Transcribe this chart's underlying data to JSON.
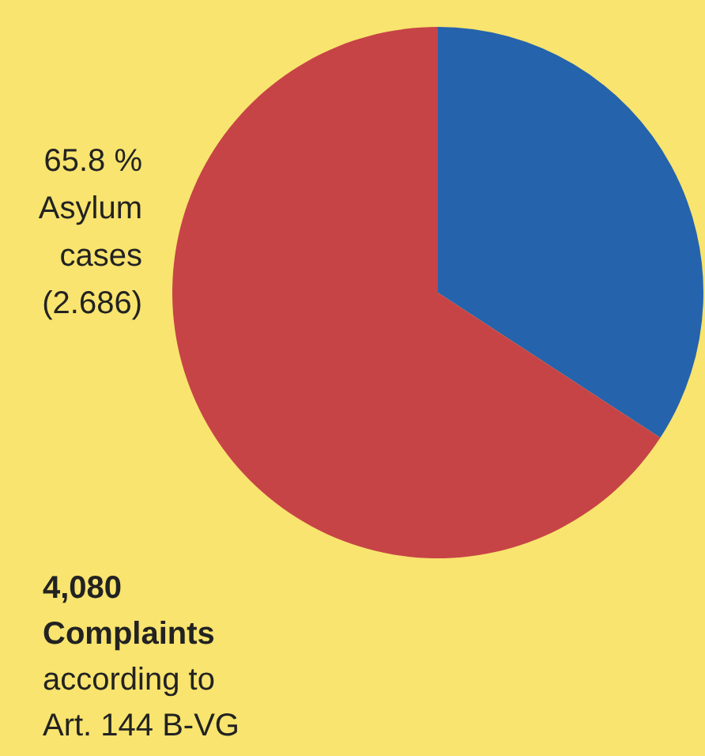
{
  "chart_data": {
    "type": "pie",
    "title": "4,080 Complaints",
    "subtitle": "according to Art. 144 B-VG",
    "categories": [
      null,
      "Asylum cases"
    ],
    "values": [
      34.2,
      65.8
    ],
    "colors": [
      "#2563ad",
      "#c74446"
    ],
    "value_labels": [
      null,
      "65.8 %"
    ],
    "annotations": [
      "(2.686)"
    ]
  }
}
